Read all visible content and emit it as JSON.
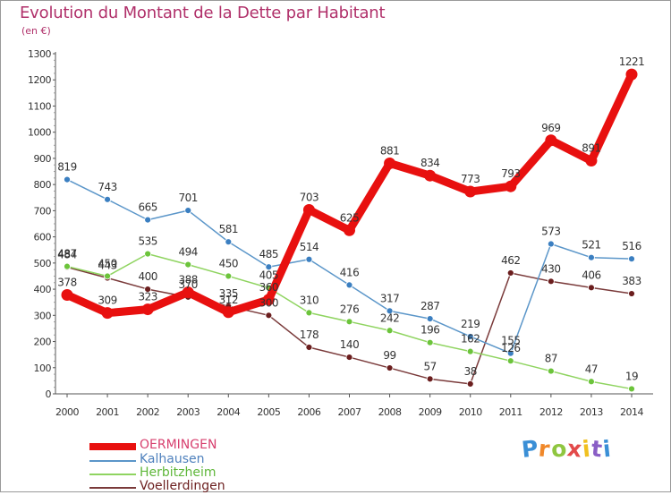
{
  "title": "Evolution du Montant de la Dette par Habitant",
  "subtitle": "(en €)",
  "logo": [
    "P",
    "r",
    "o",
    "x",
    "i",
    "t",
    "i"
  ],
  "logo_colors": [
    "#3a8fd6",
    "#f0882a",
    "#8fc640",
    "#e34a4a",
    "#f0c020",
    "#8a5ec6",
    "#3a8fd6"
  ],
  "chart_data": {
    "type": "line",
    "title": "Evolution du Montant de la Dette par Habitant",
    "ylabel": "(en €)",
    "xlabel": "",
    "x": [
      "2000",
      "2001",
      "2002",
      "2003",
      "2004",
      "2005",
      "2006",
      "2007",
      "2008",
      "2009",
      "2010",
      "2011",
      "2012",
      "2013",
      "2014"
    ],
    "ylim": [
      0,
      1300
    ],
    "yticks": [
      "0",
      "100",
      "200",
      "300",
      "400",
      "500",
      "600",
      "700",
      "800",
      "900",
      "1000",
      "1100",
      "1200",
      "1300"
    ],
    "series": [
      {
        "name": "OERMINGEN",
        "color": "#e8100f",
        "values": [
          378,
          309,
          323,
          388,
          312,
          360,
          703,
          625,
          881,
          834,
          773,
          793,
          969,
          891,
          1221
        ],
        "labels": [
          "378",
          "309",
          "323",
          "388",
          "312",
          "360",
          "703",
          "625",
          "881",
          "834",
          "773",
          "793",
          "969",
          "891",
          "1221"
        ]
      },
      {
        "name": "Kalhausen",
        "color": "#5b96c9",
        "marker": "#3b7fc1",
        "values": [
          819,
          743,
          665,
          701,
          581,
          485,
          514,
          416,
          317,
          287,
          219,
          155,
          573,
          521,
          516
        ],
        "labels": [
          "819",
          "743",
          "665",
          "701",
          "581",
          "485",
          "514",
          "416",
          "317",
          "287",
          "219",
          "155",
          "573",
          "521",
          "516"
        ]
      },
      {
        "name": "Herbitzheim",
        "color": "#8fd460",
        "marker": "#6cc43b",
        "values": [
          487,
          450,
          535,
          494,
          450,
          405,
          310,
          276,
          242,
          196,
          162,
          126,
          87,
          47,
          19
        ],
        "labels": [
          "487",
          "450",
          "535",
          "494",
          "450",
          "405",
          "310",
          "276",
          "242",
          "196",
          "162",
          "126",
          "87",
          "47",
          "19"
        ]
      },
      {
        "name": "Voellerdingen",
        "color": "#7a3a3a",
        "marker": "#6b1e1e",
        "values": [
          484,
          443,
          400,
          370,
          335,
          300,
          178,
          140,
          99,
          57,
          38,
          462,
          430,
          406,
          383
        ],
        "labels": [
          "484",
          "443",
          "400",
          "370",
          "335",
          "300",
          "178",
          "140",
          "99",
          "57",
          "38",
          "462",
          "430",
          "406",
          "383"
        ]
      }
    ],
    "grid": false,
    "legend": "bottom-left"
  }
}
